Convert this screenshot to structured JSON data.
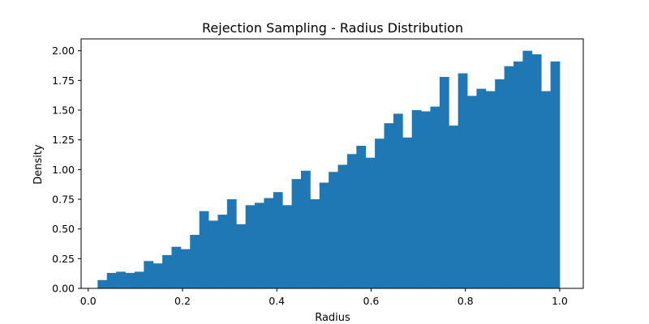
{
  "chart_data": {
    "type": "bar",
    "title": "Rejection Sampling - Radius Distribution",
    "xlabel": "Radius",
    "ylabel": "Density",
    "xlim": [
      -0.015,
      1.05
    ],
    "ylim": [
      0,
      2.1
    ],
    "xticks": [
      0.0,
      0.2,
      0.4,
      0.6,
      0.8,
      1.0
    ],
    "xtick_labels": [
      "0.0",
      "0.2",
      "0.4",
      "0.6",
      "0.8",
      "1.0"
    ],
    "yticks": [
      0.0,
      0.25,
      0.5,
      0.75,
      1.0,
      1.25,
      1.5,
      1.75,
      2.0
    ],
    "ytick_labels": [
      "0.00",
      "0.25",
      "0.50",
      "0.75",
      "1.00",
      "1.25",
      "1.50",
      "1.75",
      "2.00"
    ],
    "bin_start": 0.02,
    "bin_end": 1.0,
    "bar_color": "#1f77b4",
    "grid": false,
    "values": [
      0.07,
      0.13,
      0.14,
      0.13,
      0.14,
      0.23,
      0.21,
      0.28,
      0.35,
      0.33,
      0.45,
      0.65,
      0.57,
      0.62,
      0.75,
      0.54,
      0.7,
      0.72,
      0.76,
      0.81,
      0.7,
      0.92,
      0.99,
      0.75,
      0.89,
      0.98,
      1.04,
      1.13,
      1.2,
      1.1,
      1.26,
      1.39,
      1.47,
      1.27,
      1.5,
      1.49,
      1.53,
      1.78,
      1.37,
      1.81,
      1.62,
      1.68,
      1.66,
      1.76,
      1.87,
      1.91,
      2.0,
      1.97,
      1.66,
      1.91
    ]
  }
}
